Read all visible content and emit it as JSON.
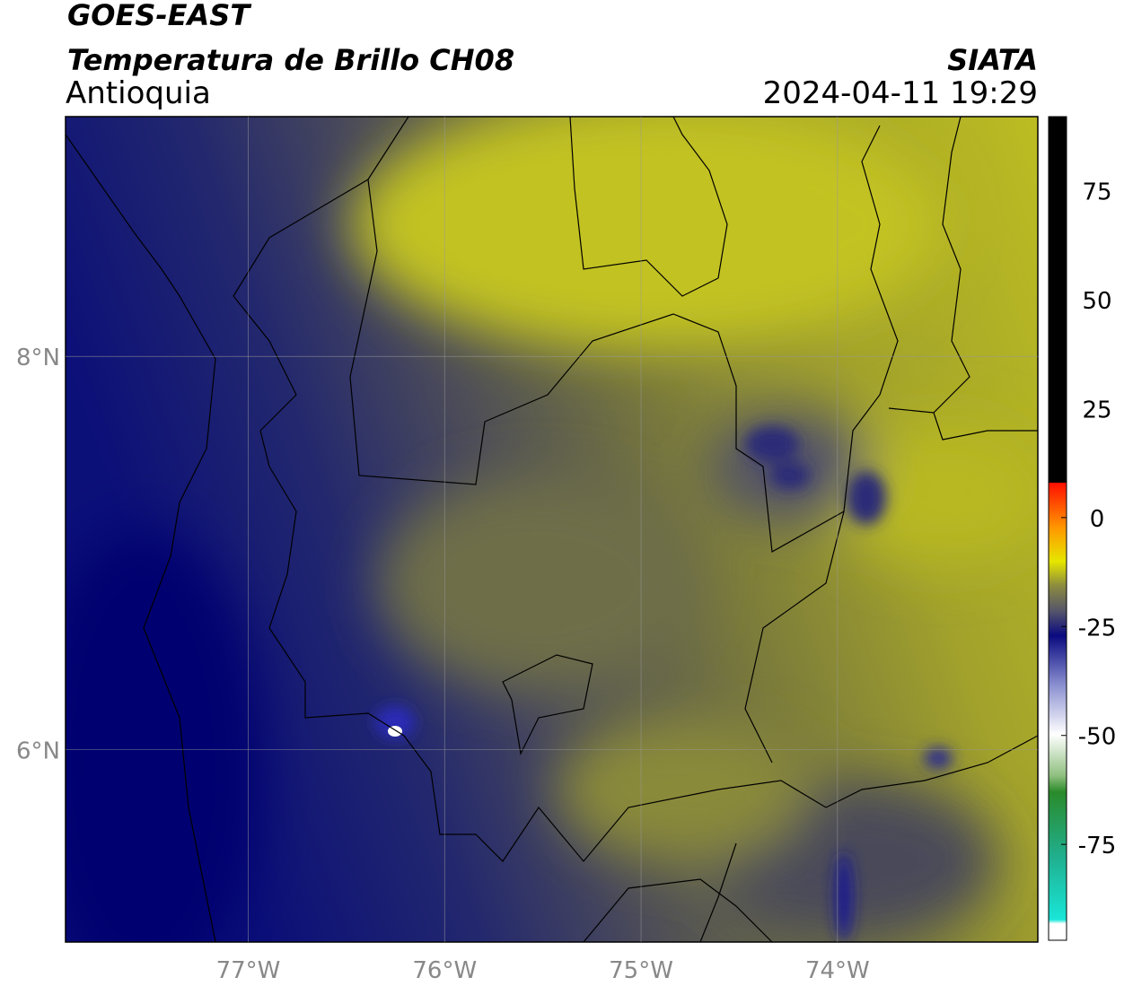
{
  "header": {
    "title": "GOES-EAST",
    "subtitle": "Temperatura de Brillo CH08",
    "region": "Antioquia",
    "source": "SIATA",
    "datetime": "2024-04-11 19:29"
  },
  "map": {
    "xlim": [
      -77.93,
      -72.98
    ],
    "ylim": [
      5.02,
      9.22
    ],
    "xticks": [
      {
        "value": -77,
        "label": "77°W"
      },
      {
        "value": -76,
        "label": "76°W"
      },
      {
        "value": -75,
        "label": "75°W"
      },
      {
        "value": -74,
        "label": "74°W"
      }
    ],
    "yticks": [
      {
        "value": 6,
        "label": "6°N"
      },
      {
        "value": 8,
        "label": "8°N"
      }
    ],
    "grid": true
  },
  "colorbar": {
    "lim": [
      -97,
      92
    ],
    "ticks": [
      -75,
      -50,
      -25,
      0,
      25,
      50,
      75
    ]
  }
}
